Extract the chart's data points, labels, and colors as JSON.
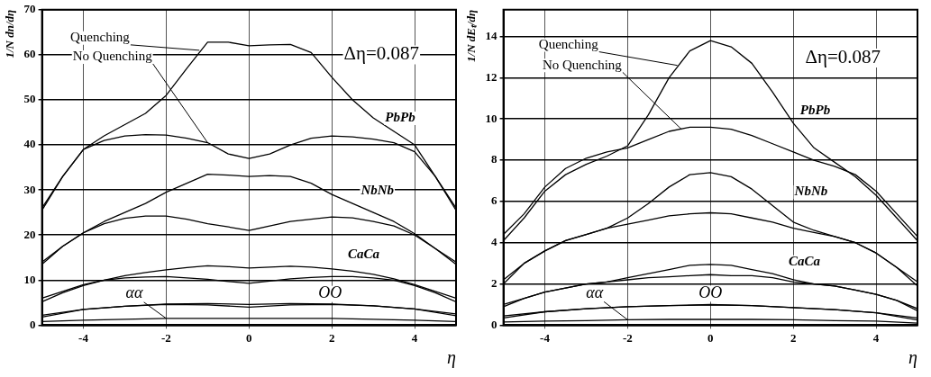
{
  "chart_data": [
    {
      "type": "line",
      "xlabel": "η",
      "ylabel": "1/N dn/dη",
      "xlim": [
        -5,
        5
      ],
      "xticks": [
        -4,
        -2,
        0,
        2,
        4
      ],
      "ylim": [
        0,
        70
      ],
      "yticks": [
        0,
        10,
        20,
        30,
        40,
        50,
        60,
        70
      ],
      "grid": true,
      "legend": false,
      "marker": "none",
      "line_style": "solid",
      "x": [
        -5,
        -4.5,
        -4,
        -3.5,
        -3,
        -2.5,
        -2,
        -1.5,
        -1,
        -0.5,
        0,
        0.5,
        1,
        1.5,
        2,
        2.5,
        3,
        3.5,
        4,
        4.5,
        5
      ],
      "series": [
        {
          "color": "#000000",
          "values": [
            26,
            33,
            39,
            42,
            44.5,
            47,
            51,
            57,
            62.8,
            62.8,
            62,
            62.2,
            62.3,
            60.5,
            55,
            50,
            46,
            43,
            40,
            33,
            26
          ]
        },
        {
          "color": "#000000",
          "values": [
            25.5,
            33,
            39,
            41,
            42,
            42.3,
            42.2,
            41.5,
            40.5,
            38,
            37,
            38,
            40,
            41.5,
            42,
            41.8,
            41.3,
            40.5,
            38.5,
            33,
            25.5
          ]
        },
        {
          "color": "#000000",
          "values": [
            14,
            17.5,
            20.5,
            23,
            25,
            27,
            29.5,
            31.5,
            33.5,
            33.3,
            33,
            33.2,
            33,
            31.5,
            29,
            27,
            25,
            23,
            20.3,
            17,
            14
          ]
        },
        {
          "color": "#000000",
          "values": [
            13.5,
            17.5,
            20.5,
            22.5,
            23.7,
            24.2,
            24.2,
            23.5,
            22.5,
            21.8,
            21,
            22,
            23,
            23.5,
            24,
            23.8,
            23,
            22,
            20,
            17,
            13.5
          ]
        },
        {
          "color": "#000000",
          "values": [
            6,
            7.5,
            9,
            10,
            11,
            11.7,
            12.3,
            12.8,
            13.2,
            13,
            12.7,
            12.9,
            13.1,
            12.9,
            12.5,
            12,
            11.3,
            10.3,
            9,
            7.5,
            6
          ]
        },
        {
          "color": "#000000",
          "values": [
            5.2,
            7.2,
            8.8,
            10,
            10.5,
            10.7,
            10.8,
            10.5,
            10.2,
            9.7,
            9.3,
            9.8,
            10.3,
            10.6,
            10.8,
            10.8,
            10.5,
            10,
            8.8,
            7.2,
            5.2
          ]
        },
        {
          "color": "#000000",
          "x": [
            -5,
            -4,
            -3,
            -2,
            -1,
            0,
            1,
            2,
            3,
            4,
            5
          ],
          "values": [
            2.2,
            3.5,
            4.2,
            4.7,
            4.8,
            4.6,
            4.8,
            4.7,
            4.3,
            3.6,
            2.5
          ]
        },
        {
          "color": "#000000",
          "x": [
            -5,
            -4,
            -3,
            -2,
            -1,
            0,
            1,
            2,
            3,
            4,
            5
          ],
          "values": [
            1.8,
            3.5,
            4.2,
            4.6,
            4.5,
            4,
            4.5,
            4.6,
            4.3,
            3.6,
            2.1
          ]
        },
        {
          "color": "#000000",
          "x": [
            -5,
            -4,
            -3,
            -2,
            -1,
            0,
            1,
            2,
            3,
            4,
            5
          ],
          "values": [
            0.8,
            1.1,
            1.3,
            1.5,
            1.5,
            1.5,
            1.5,
            1.5,
            1.3,
            1.1,
            0.8
          ]
        }
      ],
      "annotations": [
        {
          "text": "Quenching",
          "x": -1.2,
          "y": 61
        },
        {
          "text": "No Quenching",
          "x": -1,
          "y": 40.5
        },
        "Δη=0.087",
        "PbPb",
        "NbNb",
        "CaCa",
        "OO",
        {
          "text": "αα",
          "x": -2,
          "y": 1.5
        }
      ]
    },
    {
      "type": "line",
      "xlabel": "η",
      "ylabel": "1/N dEₜ/dη",
      "xlim": [
        -5,
        5
      ],
      "xticks": [
        -4,
        -2,
        0,
        2,
        4
      ],
      "ylim": [
        0,
        15.3
      ],
      "yticks": [
        0,
        2,
        4,
        6,
        8,
        10,
        12,
        14
      ],
      "grid": true,
      "legend": false,
      "marker": "none",
      "line_style": "solid",
      "x": [
        -5,
        -4.5,
        -4,
        -3.5,
        -3,
        -2.5,
        -2,
        -1.5,
        -1,
        -0.5,
        0,
        0.5,
        1,
        1.5,
        2,
        2.5,
        3,
        3.5,
        4,
        4.5,
        5
      ],
      "series": [
        {
          "color": "#000000",
          "values": [
            4.1,
            5.2,
            6.5,
            7.3,
            7.8,
            8.2,
            8.7,
            10.2,
            12,
            13.3,
            13.8,
            13.5,
            12.7,
            11.3,
            9.8,
            8.6,
            7.9,
            7.2,
            6.3,
            5.2,
            4.1
          ]
        },
        {
          "color": "#000000",
          "values": [
            4.4,
            5.4,
            6.7,
            7.6,
            8.1,
            8.4,
            8.6,
            9,
            9.4,
            9.6,
            9.6,
            9.5,
            9.2,
            8.8,
            8.4,
            8,
            7.7,
            7.3,
            6.5,
            5.4,
            4.3
          ]
        },
        {
          "color": "#000000",
          "values": [
            2.2,
            3,
            3.6,
            4.1,
            4.4,
            4.7,
            5.2,
            5.9,
            6.7,
            7.3,
            7.4,
            7.2,
            6.6,
            5.8,
            5,
            4.6,
            4.3,
            4,
            3.5,
            2.8,
            2.1
          ]
        },
        {
          "color": "#000000",
          "values": [
            2,
            3,
            3.6,
            4.1,
            4.4,
            4.7,
            4.9,
            5.1,
            5.3,
            5.4,
            5.45,
            5.4,
            5.2,
            5,
            4.7,
            4.5,
            4.3,
            4,
            3.5,
            2.8,
            1.9
          ]
        },
        {
          "color": "#000000",
          "values": [
            1,
            1.3,
            1.6,
            1.8,
            2,
            2.1,
            2.3,
            2.5,
            2.7,
            2.9,
            2.95,
            2.9,
            2.7,
            2.5,
            2.2,
            2,
            1.9,
            1.7,
            1.5,
            1.2,
            0.8
          ]
        },
        {
          "color": "#000000",
          "values": [
            0.9,
            1.3,
            1.6,
            1.8,
            2,
            2.1,
            2.2,
            2.3,
            2.35,
            2.4,
            2.45,
            2.4,
            2.4,
            2.3,
            2.1,
            2,
            1.9,
            1.7,
            1.5,
            1.2,
            0.7
          ]
        },
        {
          "color": "#000000",
          "x": [
            -5,
            -4,
            -3,
            -2,
            -1,
            0,
            1,
            2,
            3,
            4,
            5
          ],
          "values": [
            0.45,
            0.65,
            0.8,
            0.9,
            0.95,
            1,
            0.95,
            0.85,
            0.75,
            0.6,
            0.35
          ]
        },
        {
          "color": "#000000",
          "x": [
            -5,
            -4,
            -3,
            -2,
            -1,
            0,
            1,
            2,
            3,
            4,
            5
          ],
          "values": [
            0.35,
            0.65,
            0.8,
            0.9,
            0.95,
            0.98,
            0.95,
            0.85,
            0.75,
            0.6,
            0.25
          ]
        },
        {
          "color": "#000000",
          "x": [
            -5,
            -4,
            -3,
            -2,
            -1,
            0,
            1,
            2,
            3,
            4,
            5
          ],
          "values": [
            0.15,
            0.2,
            0.22,
            0.26,
            0.28,
            0.28,
            0.28,
            0.26,
            0.22,
            0.2,
            0.1
          ]
        }
      ],
      "annotations": [
        {
          "text": "Quenching",
          "x": -0.8,
          "y": 12.6
        },
        {
          "text": "No Quenching",
          "x": -0.7,
          "y": 9.5
        },
        "Δη=0.087",
        "PbPb",
        "NbNb",
        "CaCa",
        "OO",
        {
          "text": "αα",
          "x": -2,
          "y": 0.26
        }
      ]
    }
  ]
}
